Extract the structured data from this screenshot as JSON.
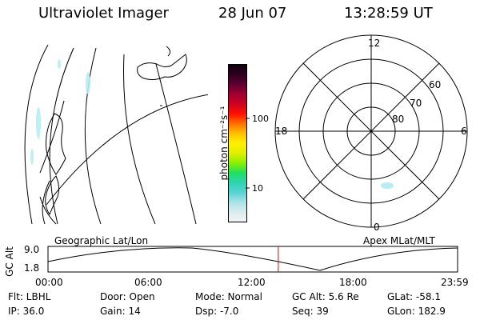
{
  "header": {
    "title": "Ultraviolet Imager",
    "date": "28 Jun 07",
    "time": "13:28:59 UT"
  },
  "colorbar": {
    "unit_label": "photon cm⁻²s⁻¹",
    "ticks": [
      "100",
      "10"
    ],
    "colors": [
      "#f4f4f4",
      "#d8ecee",
      "#a8e2e6",
      "#58d2d2",
      "#2cd4b0",
      "#20e060",
      "#8cf000",
      "#e0f000",
      "#fff000",
      "#ffc000",
      "#ff7000",
      "#ff1000",
      "#d00020",
      "#a00030",
      "#600030",
      "#300020",
      "#100010"
    ]
  },
  "polar": {
    "mlt_labels": [
      "12",
      "18",
      "6",
      "0"
    ],
    "lat_labels": [
      "60",
      "70",
      "80"
    ]
  },
  "timeline": {
    "left_label": "Geographic Lat/Lon",
    "right_label": "Apex MLat/MLT",
    "y_axis_label": "GC Alt",
    "y_ticks": [
      "9.0",
      "1.8"
    ],
    "x_ticks": [
      "00:00",
      "06:00",
      "12:00",
      "18:00",
      "23:59"
    ],
    "current_time_hours": 13.483
  },
  "info": {
    "filter": "Flt: LBHL",
    "ip": "IP: 36.0",
    "door": "Door: Open",
    "gain": "Gain: 14",
    "mode": "Mode: Normal",
    "dsp": "Dsp:    -7.0",
    "gc_alt": "GC Alt: 5.6 Re",
    "seq": "Seq: 39",
    "glat": "GLat: -58.1",
    "glon": "GLon: 182.9"
  }
}
